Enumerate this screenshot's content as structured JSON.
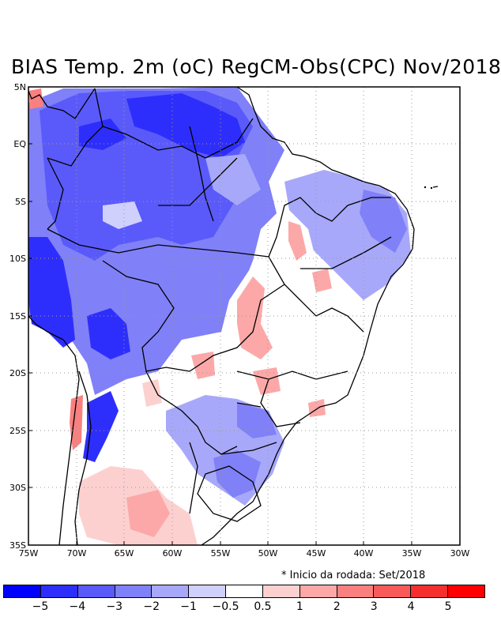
{
  "title": "BIAS Temp. 2m (oC) RegCM-Obs(CPC) Nov/2018",
  "note": "* Inicio da rodada: Set/2018",
  "map": {
    "lat_labels": [
      "5N",
      "EQ",
      "5S",
      "10S",
      "15S",
      "20S",
      "25S",
      "30S",
      "35S"
    ],
    "lon_labels": [
      "75W",
      "70W",
      "65W",
      "60W",
      "55W",
      "50W",
      "45W",
      "40W",
      "35W",
      "30W"
    ],
    "lon_range": [
      -75,
      -30
    ],
    "lat_range": [
      -35,
      5
    ],
    "grid": true
  },
  "colorbar": {
    "colors": [
      "#0000ff",
      "#2e2efc",
      "#5a5afb",
      "#8080f8",
      "#a8a8fa",
      "#d0d0fc",
      "#ffffff",
      "#fdd0d0",
      "#fca8a8",
      "#fa8080",
      "#f85a5a",
      "#f52e2e",
      "#ff0000"
    ],
    "labels": [
      "−5",
      "−4",
      "−3",
      "−2",
      "−1",
      "−0.5",
      "0.5",
      "1",
      "2",
      "3",
      "4",
      "5"
    ]
  }
}
